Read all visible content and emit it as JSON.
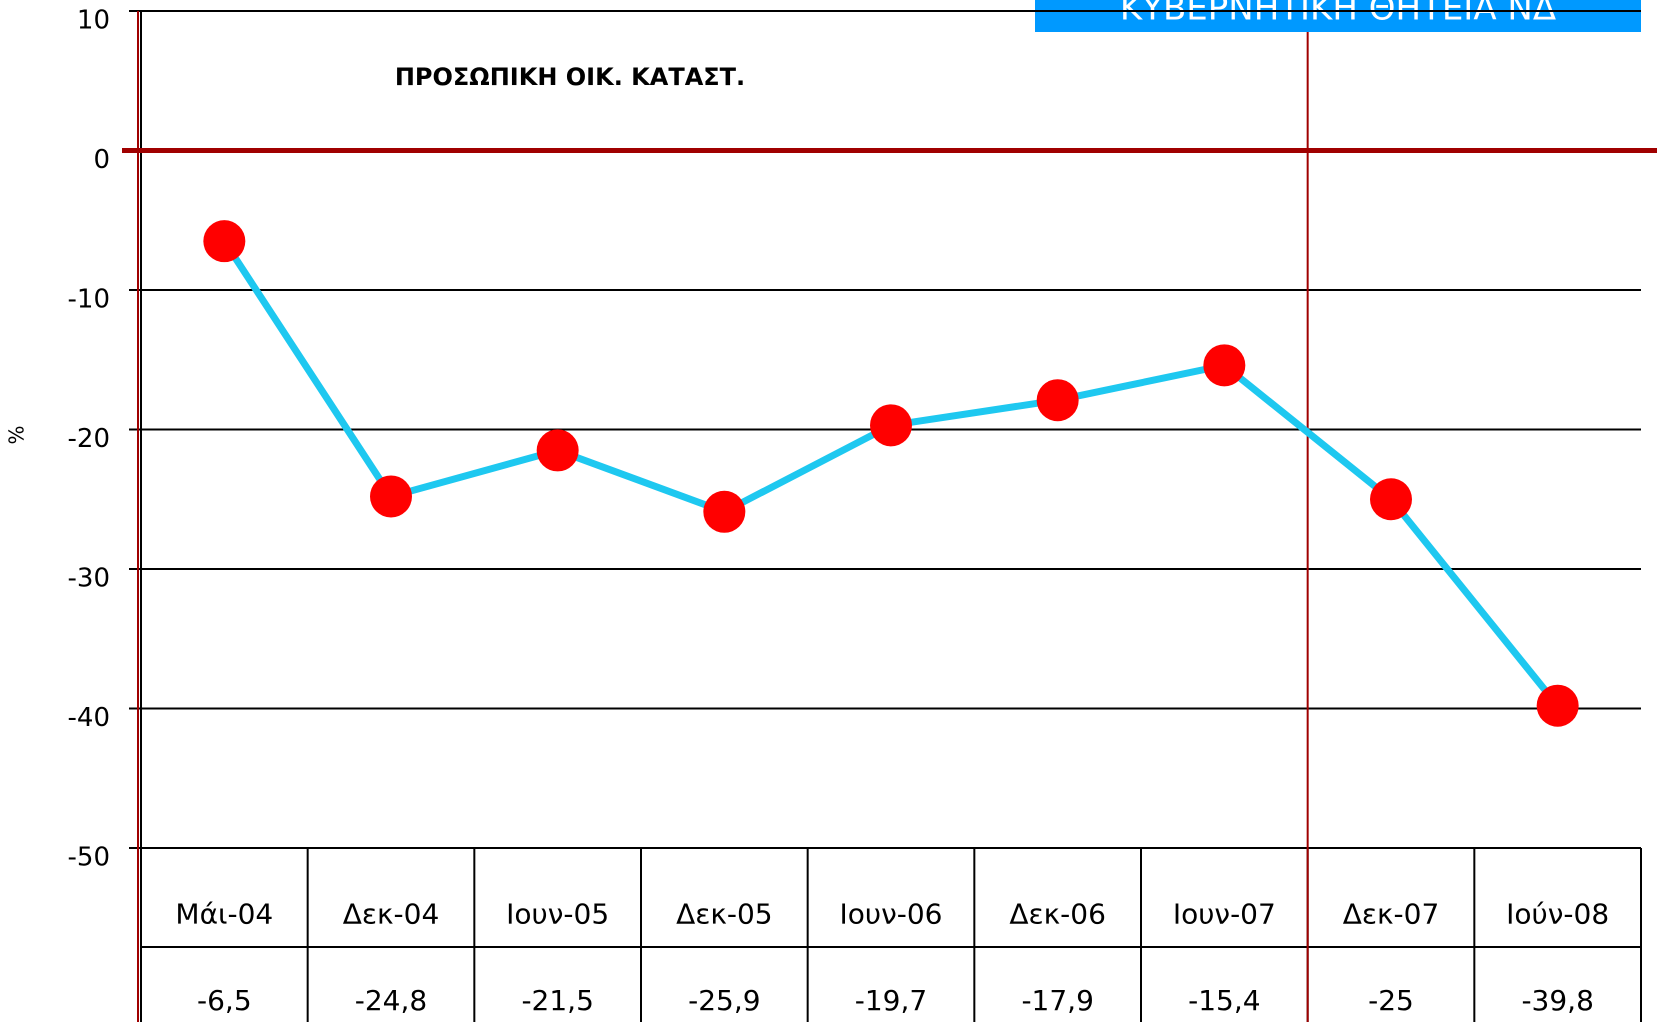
{
  "chart_data": {
    "type": "line",
    "title": "ΠΡΟΣΩΠΙΚΗ ΟΙΚ. ΚΑΤΑΣΤ.",
    "y_label": "%",
    "annotation": "ΚΥΒΕΡΝΗΤΙΚΗ ΘΗΤΕΙΑ ΝΔ",
    "categories": [
      "Μάι-04",
      "Δεκ-04",
      "Ιουν-05",
      "Δεκ-05",
      "Ιουν-06",
      "Δεκ-06",
      "Ιουν-07",
      "Δεκ-07",
      "Ιούν-08"
    ],
    "values": [
      -6.5,
      -24.8,
      -21.5,
      -25.9,
      -19.7,
      -17.9,
      -15.4,
      -25,
      -39.8
    ],
    "value_labels": [
      "-6,5",
      "-24,8",
      "-21,5",
      "-25,9",
      "-19,7",
      "-17,9",
      "-15,4",
      "-25",
      "-39,8"
    ],
    "color": "#1ec8f0",
    "marker_color": "#ff0000",
    "ylim": [
      -50,
      10
    ],
    "yticks": [
      10,
      0,
      -10,
      -20,
      -30,
      -40,
      -50
    ],
    "grid": true
  }
}
